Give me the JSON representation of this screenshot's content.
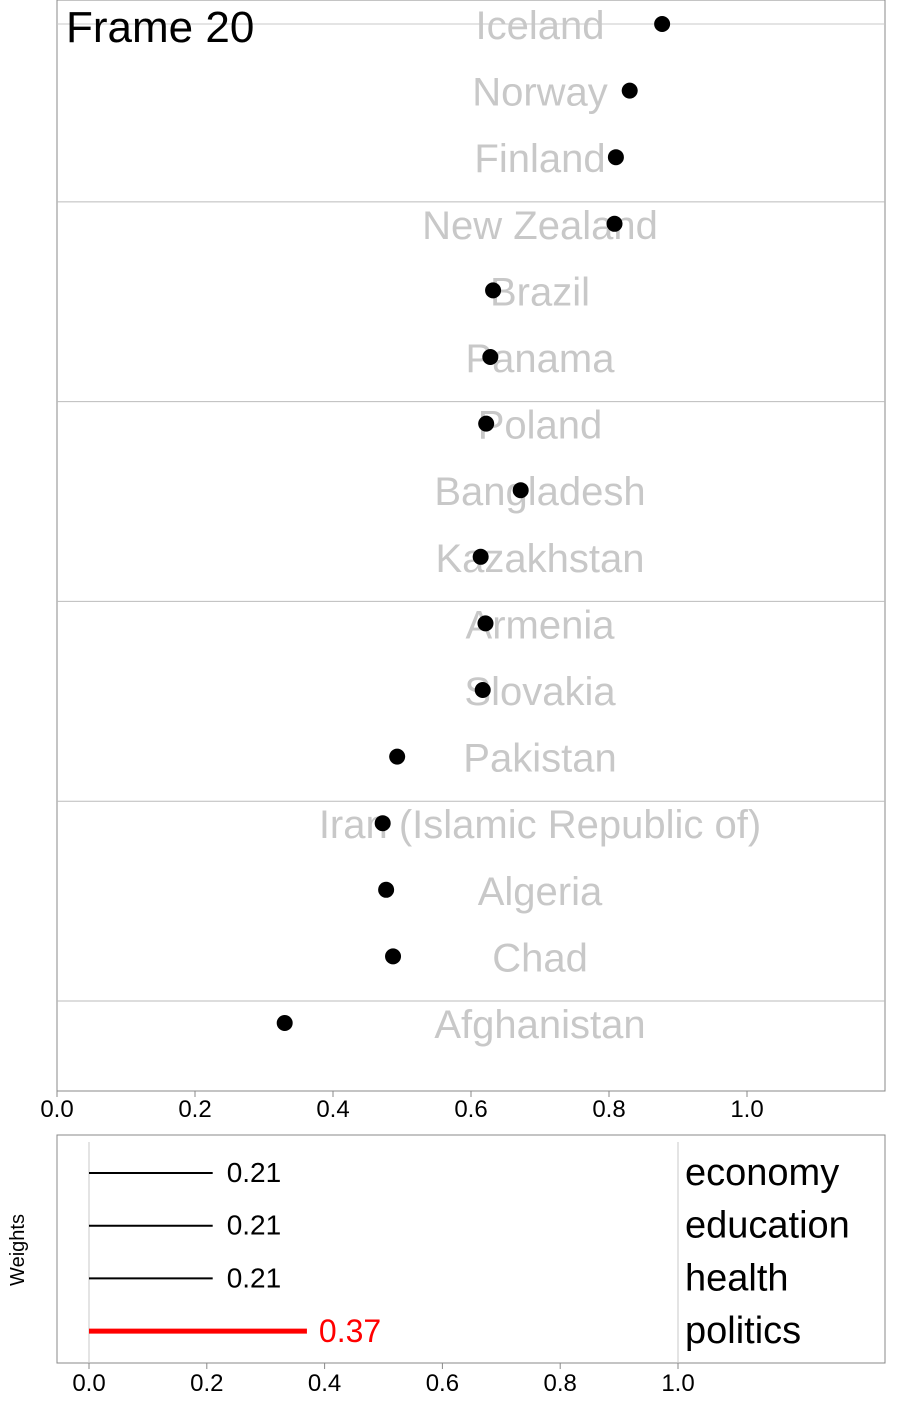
{
  "chart_data": [
    {
      "type": "scatter",
      "frame_label": "Frame 20",
      "countries": [
        "Iceland",
        "Norway",
        "Finland",
        "New Zealand",
        "Brazil",
        "Panama",
        "Poland",
        "Bangladesh",
        "Kazakhstan",
        "Armenia",
        "Slovakia",
        "Pakistan",
        "Iran (Islamic Republic of)",
        "Algeria",
        "Chad",
        "Afghanistan"
      ],
      "values": [
        0.877,
        0.83,
        0.81,
        0.808,
        0.632,
        0.628,
        0.622,
        0.672,
        0.614,
        0.621,
        0.617,
        0.493,
        0.472,
        0.477,
        0.487,
        0.33
      ],
      "x_ticks": [
        "0.0",
        "0.2",
        "0.4",
        "0.6",
        "0.8",
        "1.0"
      ],
      "x_tick_values": [
        0,
        0.2,
        0.4,
        0.6,
        0.8,
        1.0
      ],
      "xlim": [
        0,
        1.2
      ],
      "group_size": 3,
      "grid": "horizontal separators every 3 countries",
      "label_color": "#c8c8c8",
      "point_color": "#000000"
    },
    {
      "type": "bar",
      "ylabel": "Weights",
      "categories": [
        "economy",
        "education",
        "health",
        "politics"
      ],
      "values": [
        0.21,
        0.21,
        0.21,
        0.37
      ],
      "value_labels": [
        "0.21",
        "0.21",
        "0.21",
        "0.37"
      ],
      "highlight_index": 3,
      "highlight_color": "#ff0000",
      "bar_color": "#000000",
      "x_ticks": [
        "0.0",
        "0.2",
        "0.4",
        "0.6",
        "0.8",
        "1.0"
      ],
      "x_tick_values": [
        0,
        0.2,
        0.4,
        0.6,
        0.8,
        1.0
      ],
      "xlim": [
        0,
        1.4
      ]
    }
  ]
}
